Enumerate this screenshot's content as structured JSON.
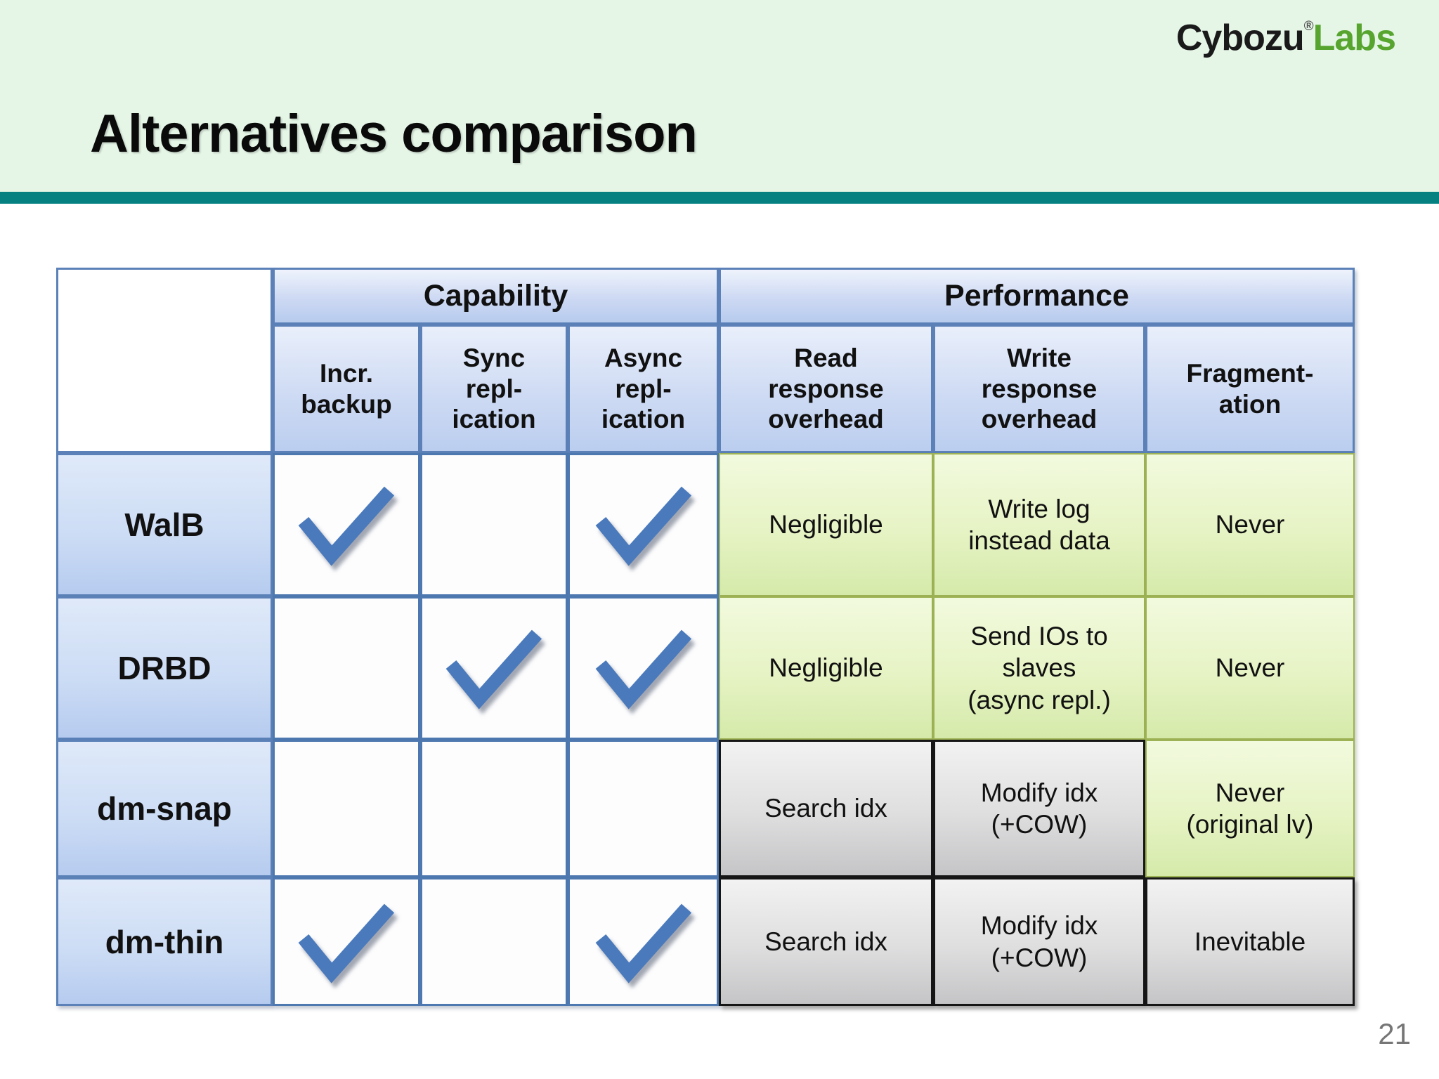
{
  "slide": {
    "title": "Alternatives comparison",
    "page_number": "21",
    "logo": {
      "part1": "Cybozu",
      "registered": "®",
      "part2": "Labs"
    }
  },
  "table": {
    "group_headers": [
      {
        "label": "Capability",
        "span": 3
      },
      {
        "label": "Performance",
        "span": 3
      }
    ],
    "column_headers": [
      "Incr.\nbackup",
      "Sync\nrepl-\nication",
      "Async\nrepl-\nication",
      "Read\nresponse\noverhead",
      "Write\nresponse\noverhead",
      "Fragment-\nation"
    ],
    "rows": [
      {
        "name": "WalB",
        "capability": [
          true,
          false,
          true
        ],
        "performance": [
          {
            "text": "Negligible",
            "tone": "good"
          },
          {
            "text": "Write log\ninstead data",
            "tone": "good"
          },
          {
            "text": "Never",
            "tone": "good"
          }
        ]
      },
      {
        "name": "DRBD",
        "capability": [
          false,
          true,
          true
        ],
        "performance": [
          {
            "text": "Negligible",
            "tone": "good"
          },
          {
            "text": "Send IOs to\nslaves\n(async repl.)",
            "tone": "good"
          },
          {
            "text": "Never",
            "tone": "good"
          }
        ]
      },
      {
        "name": "dm-snap",
        "capability": [
          false,
          false,
          false
        ],
        "performance": [
          {
            "text": "Search idx",
            "tone": "bad"
          },
          {
            "text": "Modify idx\n(+COW)",
            "tone": "bad"
          },
          {
            "text": "Never\n(original lv)",
            "tone": "good"
          }
        ]
      },
      {
        "name": "dm-thin",
        "capability": [
          true,
          false,
          true
        ],
        "performance": [
          {
            "text": "Search idx",
            "tone": "bad"
          },
          {
            "text": "Modify idx\n(+COW)",
            "tone": "bad"
          },
          {
            "text": "Inevitable",
            "tone": "bad"
          }
        ]
      }
    ]
  },
  "icons": {
    "check_icon": "✔"
  },
  "colors": {
    "band_green": "#e5f6e7",
    "divider_teal": "#068181",
    "logo_green": "#57a52f",
    "header_blue_border": "#5b81b8",
    "check_blue": "#4a7abc",
    "good_cell_green": "#d5eaaa",
    "bad_cell_gray": "#c5c5c7"
  }
}
